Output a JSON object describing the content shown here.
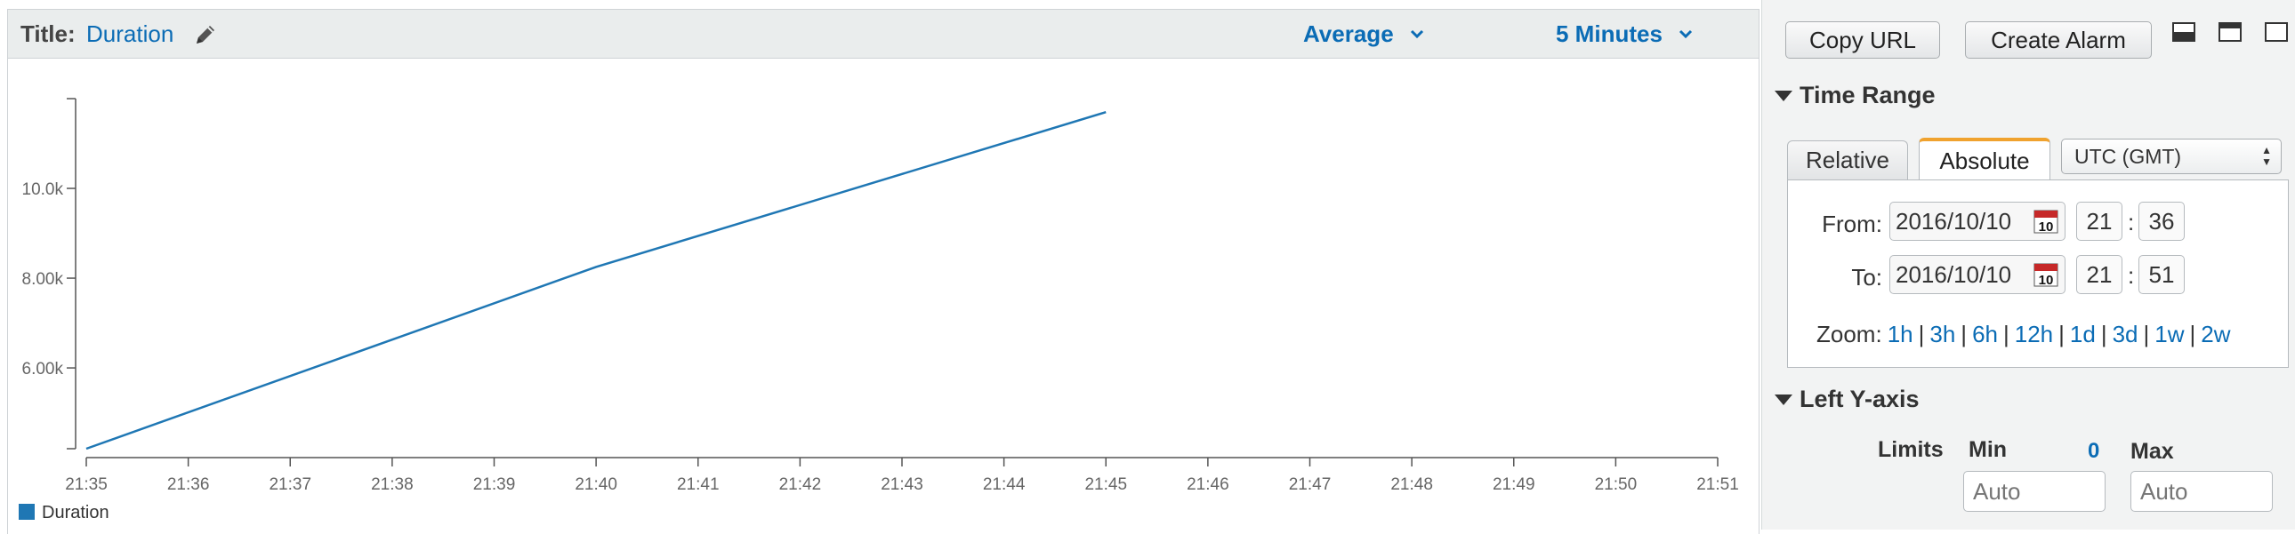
{
  "header": {
    "title_label": "Title:",
    "title_value": "Duration",
    "statistic": "Average",
    "period": "5 Minutes"
  },
  "chart_data": {
    "type": "line",
    "x_ticks": [
      "21:35",
      "21:36",
      "21:37",
      "21:38",
      "21:39",
      "21:40",
      "21:41",
      "21:42",
      "21:43",
      "21:44",
      "21:45",
      "21:46",
      "21:47",
      "21:48",
      "21:49",
      "21:50",
      "21:51"
    ],
    "x_range": [
      "21:35",
      "21:51"
    ],
    "y_ticks": [
      "6.00k",
      "8.00k",
      "10.0k"
    ],
    "y_range": [
      4200,
      12000
    ],
    "grid": false,
    "legend": "bottom-left",
    "series": [
      {
        "name": "Duration",
        "color": "#1f77b4",
        "x": [
          "21:35",
          "21:40",
          "21:45"
        ],
        "y": [
          4200,
          8250,
          11700
        ]
      }
    ]
  },
  "toolbar": {
    "copy_url": "Copy URL",
    "create_alarm": "Create Alarm"
  },
  "time_range": {
    "header": "Time Range",
    "tabs": [
      "Relative",
      "Absolute"
    ],
    "active_tab": "Absolute",
    "timezone": "UTC (GMT)",
    "from_label": "From:",
    "from_date": "2016/10/10",
    "from_hour": "21",
    "from_minute": "36",
    "to_label": "To:",
    "to_date": "2016/10/10",
    "to_hour": "21",
    "to_minute": "51",
    "calendar_day": "10",
    "colon": ":",
    "zoom_label": "Zoom:",
    "zoom_options": [
      "1h",
      "3h",
      "6h",
      "12h",
      "1d",
      "3d",
      "1w",
      "2w"
    ]
  },
  "y_axis": {
    "header": "Left Y-axis",
    "limits_label": "Limits",
    "min_label": "Min",
    "min_indicator": "0",
    "max_label": "Max",
    "min_placeholder": "Auto",
    "max_placeholder": "Auto"
  }
}
